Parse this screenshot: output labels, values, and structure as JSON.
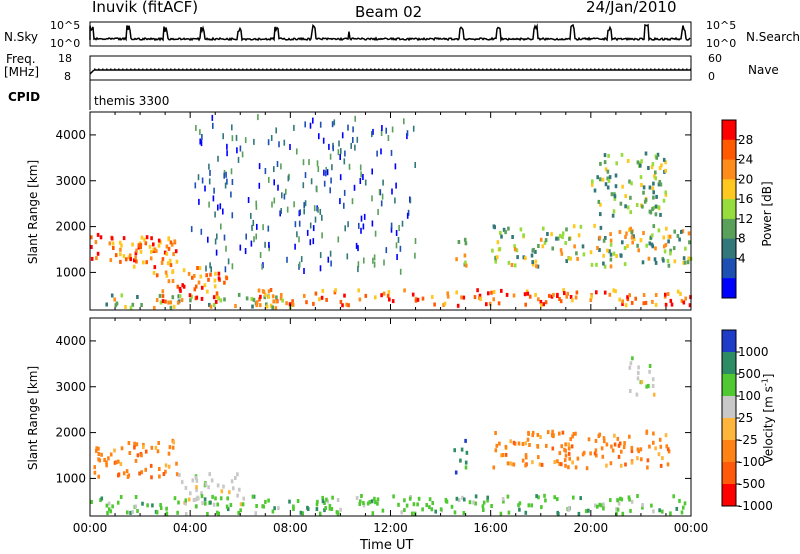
{
  "header": {
    "radar": "Inuvik (fitACF)",
    "beam": "Beam 02",
    "date": "24/Jan/2010"
  },
  "top_panels": {
    "nsky_label": "N.Sky",
    "nsky_ticks": [
      "10^5",
      "10^0"
    ],
    "nsearch_label": "N.Search",
    "nsearch_ticks": [
      "10^5",
      "10^0"
    ],
    "freq_label": "Freq.",
    "freq_unit": "[MHz]",
    "freq_ticks": [
      "18",
      "8"
    ],
    "nave_label": "Nave",
    "nave_ticks": [
      "60",
      "0"
    ],
    "cpid_label": "CPID",
    "cpid_value": "themis 3300"
  },
  "chart_data": [
    {
      "type": "heatmap",
      "title": "",
      "xlabel": "Time UT",
      "ylabel": "Slant Range [km]",
      "xlim": [
        "00:00",
        "24:00"
      ],
      "ylim": [
        180,
        4500
      ],
      "x_ticks": [
        "00:00",
        "04:00",
        "08:00",
        "12:00",
        "16:00",
        "20:00",
        "00:00"
      ],
      "y_ticks": [
        1000,
        2000,
        3000,
        4000
      ],
      "colorbar": {
        "label": "Power [dB]",
        "ticks": [
          "28",
          "24",
          "20",
          "16",
          "12",
          "8",
          "4"
        ],
        "colors": [
          "#ff0000",
          "#ff5a00",
          "#ff8c1a",
          "#ffc81e",
          "#96dc3c",
          "#5aa05a",
          "#32787a",
          "#1e50b4",
          "#0000ff"
        ]
      },
      "regions": [
        {
          "t": [
            0.0,
            3.5
          ],
          "r": [
            1100,
            1800
          ],
          "level": "high"
        },
        {
          "t": [
            1.5,
            3.5
          ],
          "r": [
            1200,
            1700
          ],
          "level": "high"
        },
        {
          "t": [
            0.0,
            8.0
          ],
          "r": [
            200,
            500
          ],
          "level": "medium"
        },
        {
          "t": [
            2.5,
            5.5
          ],
          "r": [
            300,
            1100
          ],
          "level": "high"
        },
        {
          "t": [
            6.5,
            24.0
          ],
          "r": [
            250,
            600
          ],
          "level": "high"
        },
        {
          "t": [
            14.5,
            15.0
          ],
          "r": [
            1100,
            1800
          ],
          "level": "medium"
        },
        {
          "t": [
            16.0,
            24.0
          ],
          "r": [
            1100,
            2000
          ],
          "level": "medium"
        },
        {
          "t": [
            20.0,
            23.0
          ],
          "r": [
            2200,
            3600
          ],
          "level": "low"
        },
        {
          "t": [
            4.0,
            13.0
          ],
          "r": [
            1000,
            4400
          ],
          "level": "sparse"
        }
      ]
    },
    {
      "type": "heatmap",
      "title": "",
      "xlabel": "Time UT",
      "ylabel": "Slant Range [km]",
      "xlim": [
        "00:00",
        "24:00"
      ],
      "ylim": [
        180,
        4500
      ],
      "x_ticks": [
        "00:00",
        "04:00",
        "08:00",
        "12:00",
        "16:00",
        "20:00",
        "00:00"
      ],
      "y_ticks": [
        1000,
        2000,
        3000,
        4000
      ],
      "colorbar": {
        "label": "Velocity [m s",
        "label_exp": "-1",
        "label_close": "]",
        "ticks": [
          "1000",
          "500",
          "100",
          "25",
          "-25",
          "-100",
          "-500",
          "-1000"
        ],
        "colors": [
          "#1e3cc8",
          "#2d8c64",
          "#50c832",
          "#c8c8c8",
          "#ffb43c",
          "#ff8214",
          "#ff5a0a",
          "#ff0000"
        ]
      },
      "regions": [
        {
          "t": [
            0.0,
            3.5
          ],
          "r": [
            1000,
            1800
          ],
          "level": "-100"
        },
        {
          "t": [
            3.5,
            6.0
          ],
          "r": [
            400,
            1100
          ],
          "level": "25"
        },
        {
          "t": [
            0.0,
            24.0
          ],
          "r": [
            200,
            600
          ],
          "level": "100"
        },
        {
          "t": [
            14.5,
            15.0
          ],
          "r": [
            1100,
            1800
          ],
          "level": "500"
        },
        {
          "t": [
            16.0,
            23.5
          ],
          "r": [
            1200,
            2000
          ],
          "level": "-100"
        },
        {
          "t": [
            21.5,
            22.5
          ],
          "r": [
            2800,
            3600
          ],
          "level": "25"
        }
      ]
    }
  ]
}
